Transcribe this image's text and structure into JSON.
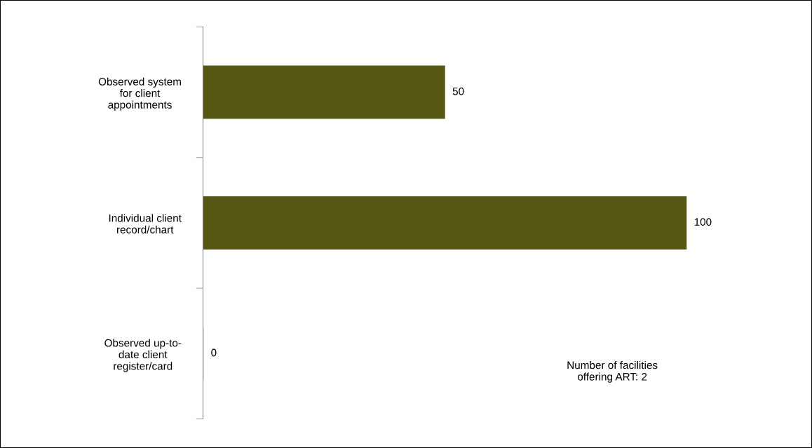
{
  "chart_data": {
    "type": "bar",
    "orientation": "horizontal",
    "categories": [
      "Observed system\nfor client\nappointments",
      "Individual client\nrecord/chart",
      "Observed up-to-\ndate client\nregister/card"
    ],
    "values": [
      50,
      100,
      0
    ],
    "color": "#575714",
    "data_labels": true,
    "tick_labels": "y",
    "grid": false,
    "legend": false,
    "annotations": [
      "Number of facilities\noffering ART: 2"
    ]
  }
}
